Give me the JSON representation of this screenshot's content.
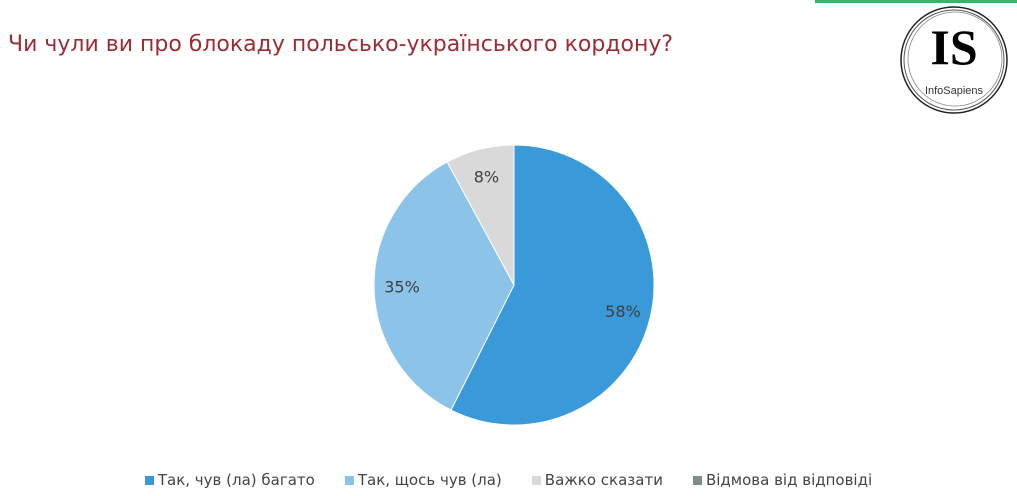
{
  "title": "Чи чули ви про блокаду польсько-українського кордону?",
  "logo": {
    "text": "IS",
    "subtext": "InfoSapiens"
  },
  "colors": {
    "accent_bar": "#3cb36b",
    "title": "#9b2d35"
  },
  "chart_data": {
    "type": "pie",
    "title": "Чи чули ви про блокаду польсько-українського кордону?",
    "start_angle": "top",
    "direction": "clockwise",
    "legend_position": "bottom",
    "slices": [
      {
        "label": "Так, чув (ла) багато",
        "value": 58,
        "display": "58%",
        "color": "#3a9ad9"
      },
      {
        "label": "Так, щось чув (ла)",
        "value": 35,
        "display": "35%",
        "color": "#8cc3e9"
      },
      {
        "label": "Важко сказати",
        "value": 8,
        "display": "8%",
        "color": "#d9d9d9"
      },
      {
        "label": "Відмова від відповіді",
        "value": 0,
        "display": "",
        "color": "#7f8c8d"
      }
    ]
  }
}
